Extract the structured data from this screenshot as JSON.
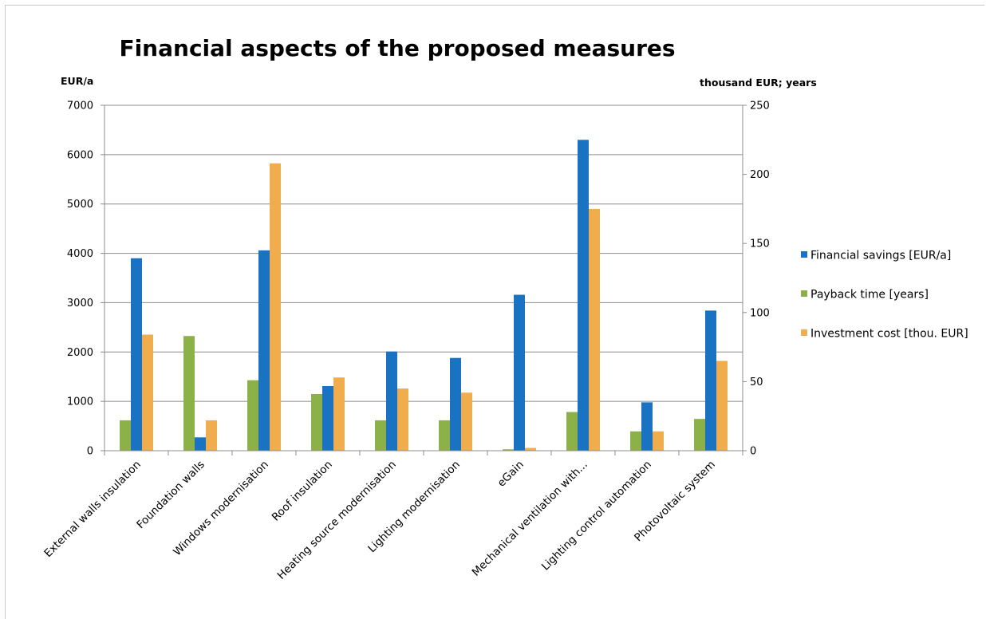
{
  "chart_data": {
    "type": "bar",
    "title": "Financial aspects of the proposed measures",
    "y_left_unit": "EUR/a",
    "y_right_unit": "thousand EUR; years",
    "ylim_left": [
      0,
      7000
    ],
    "yticks_left": [
      "0",
      "1000",
      "2000",
      "3000",
      "4000",
      "5000",
      "6000",
      "7000"
    ],
    "ylim_right": [
      0,
      250
    ],
    "yticks_right": [
      "0",
      "50",
      "100",
      "150",
      "200",
      "250"
    ],
    "grid": true,
    "legend_position": "right",
    "categories": [
      "External walls insulation",
      "Foundation walls",
      "Windows modernisation",
      "Roof insulation",
      "Heating source modernisation",
      "Lighting modernisation",
      "eGain",
      "Mechanical ventilation with...",
      "Lighting control automation",
      "Photovoltaic system"
    ],
    "series": [
      {
        "name": "Payback time [years]",
        "axis": "right",
        "color": "#8db148",
        "values": [
          22,
          83,
          51,
          41,
          22,
          22,
          1,
          28,
          14,
          23
        ]
      },
      {
        "name": "Financial savings [EUR/a]",
        "axis": "left",
        "color": "#1a72c2",
        "values": [
          3900,
          270,
          4060,
          1310,
          2010,
          1880,
          3160,
          6300,
          980,
          2840
        ]
      },
      {
        "name": "Investment cost [thou. EUR]",
        "axis": "right",
        "color": "#f0ad4e",
        "values": [
          84,
          22,
          208,
          53,
          45,
          42,
          2,
          175,
          14,
          65
        ]
      }
    ],
    "legend_order": [
      "Financial savings [EUR/a]",
      "Payback time [years]",
      "Investment cost [thou. EUR]"
    ]
  }
}
